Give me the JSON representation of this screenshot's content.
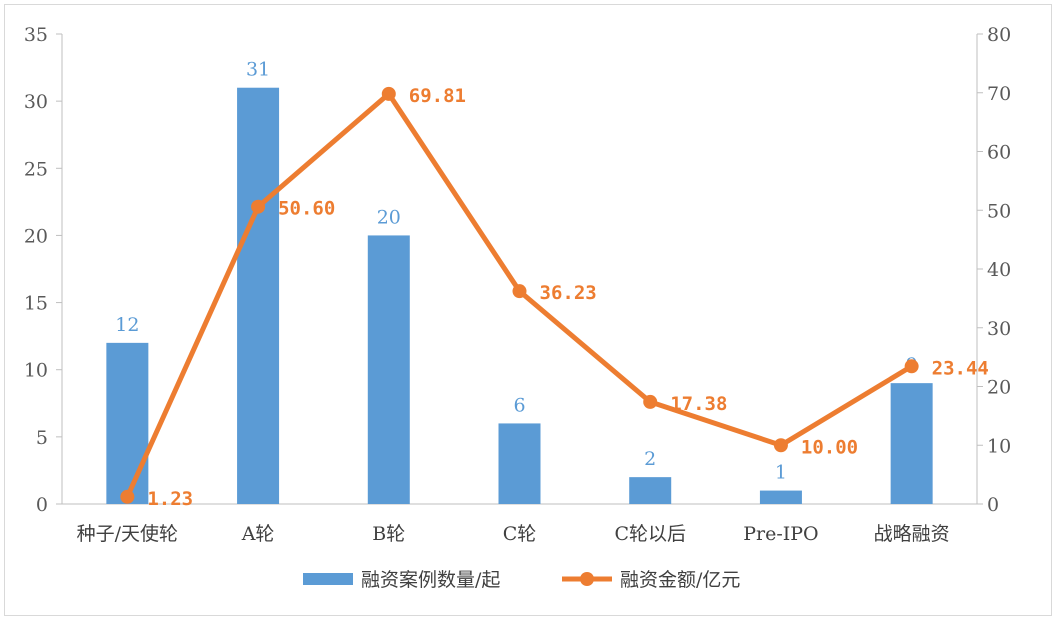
{
  "chart_data": {
    "type": "bar",
    "title": "",
    "categories": [
      "种子/天使轮",
      "A轮",
      "B轮",
      "C轮",
      "C轮以后",
      "Pre-IPO",
      "战略融资"
    ],
    "series": [
      {
        "name": "融资案例数量/起",
        "type": "bar",
        "axis": "left",
        "values": [
          12,
          31,
          20,
          6,
          2,
          1,
          9
        ],
        "labels": [
          "12",
          "31",
          "20",
          "6",
          "2",
          "1",
          "9"
        ]
      },
      {
        "name": "融资金额/亿元",
        "type": "line",
        "axis": "right",
        "values": [
          1.23,
          50.6,
          69.81,
          36.23,
          17.38,
          10.0,
          23.44
        ],
        "labels": [
          "1.23",
          "50.60",
          "69.81",
          "36.23",
          "17.38",
          "10.00",
          "23.44"
        ]
      }
    ],
    "y_left": {
      "range": [
        0,
        35
      ],
      "ticks": [
        "0",
        "5",
        "10",
        "15",
        "20",
        "25",
        "30",
        "35"
      ]
    },
    "y_right": {
      "range": [
        0,
        80
      ],
      "ticks": [
        "0",
        "10",
        "20",
        "30",
        "40",
        "50",
        "60",
        "70",
        "80"
      ]
    },
    "grid": false,
    "legend_position": "bottom-center",
    "colors": {
      "bar": "#5b9bd5",
      "line": "#ed7d31"
    }
  }
}
